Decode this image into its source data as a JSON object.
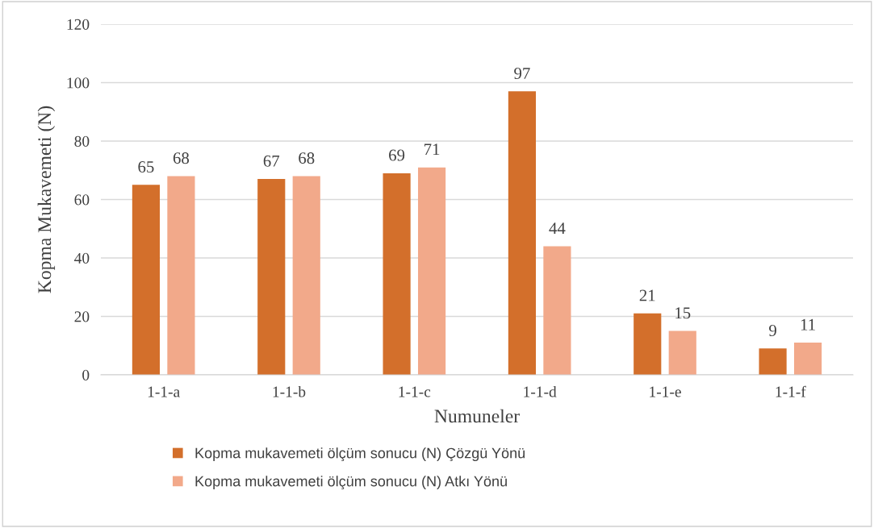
{
  "chart_data": {
    "type": "bar",
    "xlabel": "Numuneler",
    "ylabel": "Kopma Mukavemeti (N)",
    "categories": [
      "1-1-a",
      "1-1-b",
      "1-1-c",
      "1-1-d",
      "1-1-e",
      "1-1-f"
    ],
    "series": [
      {
        "name": "Kopma mukavemeti ölçüm sonucu (N) Çözgü Yönü",
        "color": "#d36f2b",
        "values": [
          65,
          67,
          69,
          97,
          21,
          9
        ]
      },
      {
        "name": "Kopma mukavemeti ölçüm sonucu (N) Atkı Yönü",
        "color": "#f2a98a",
        "values": [
          68,
          68,
          71,
          44,
          15,
          11
        ]
      }
    ],
    "ylim": [
      0,
      120
    ],
    "yticks": [
      0,
      20,
      40,
      60,
      80,
      100,
      120
    ],
    "grid": "y",
    "legend": "bottom",
    "data_labels": true
  }
}
